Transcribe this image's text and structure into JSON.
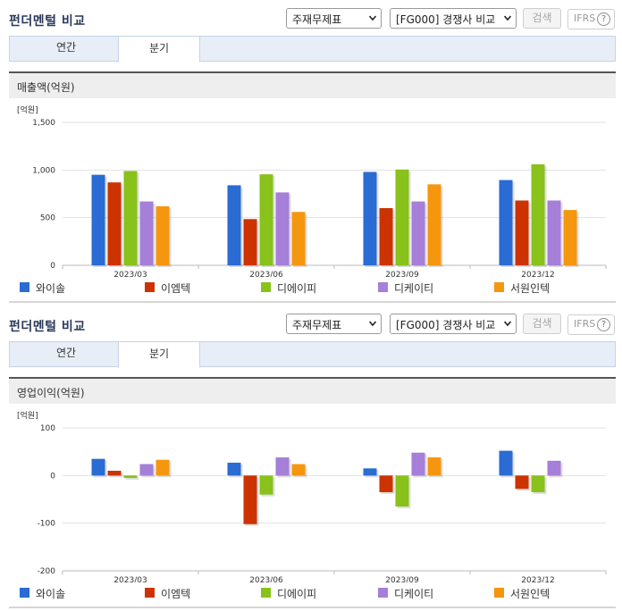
{
  "sections": [
    {
      "title": "펀더멘털 비교",
      "type_select": "주재무제표",
      "peer_select": "[FG000] 경쟁사 비교",
      "search_label": "검색",
      "ifrs_label": "IFRS",
      "help_label": "?",
      "tabs": [
        {
          "label": "연간"
        },
        {
          "label": "분기"
        }
      ],
      "chart_header": "매출액(억원)"
    },
    {
      "title": "펀더멘털 비교",
      "type_select": "주재무제표",
      "peer_select": "[FG000] 경쟁사 비교",
      "search_label": "검색",
      "ifrs_label": "IFRS",
      "help_label": "?",
      "tabs": [
        {
          "label": "연간"
        },
        {
          "label": "분기"
        }
      ],
      "chart_header": "영업이익(억원)"
    }
  ],
  "colors": {
    "와이솔": "#2a6bd4",
    "이엠텍": "#cc3300",
    "디에이피": "#88c21a",
    "디케이티": "#a57fd8",
    "서원인텍": "#f5960f"
  },
  "chart_data": [
    {
      "type": "bar",
      "unit_label": "[억원]",
      "categories": [
        "2023/03",
        "2023/06",
        "2023/09",
        "2023/12"
      ],
      "ylim": [
        0,
        1500
      ],
      "yticks": [
        0,
        500,
        1000,
        1500
      ],
      "ytick_labels": [
        "0",
        "500",
        "1,000",
        "1,500"
      ],
      "grid": true,
      "legend_position": "bottom",
      "series": [
        {
          "name": "와이솔",
          "values": [
            950,
            840,
            980,
            895
          ]
        },
        {
          "name": "이엠텍",
          "values": [
            870,
            485,
            600,
            680
          ]
        },
        {
          "name": "디에이피",
          "values": [
            990,
            955,
            1005,
            1060
          ]
        },
        {
          "name": "디케이티",
          "values": [
            670,
            765,
            670,
            680
          ]
        },
        {
          "name": "서원인텍",
          "values": [
            620,
            560,
            850,
            580
          ]
        }
      ]
    },
    {
      "type": "bar",
      "unit_label": "[억원]",
      "categories": [
        "2023/03",
        "2023/06",
        "2023/09",
        "2023/12"
      ],
      "ylim": [
        -200,
        100
      ],
      "yticks": [
        -200,
        -100,
        0,
        100
      ],
      "ytick_labels": [
        "-200",
        "-100",
        "0",
        "100"
      ],
      "grid": true,
      "legend_position": "bottom",
      "series": [
        {
          "name": "와이솔",
          "values": [
            35,
            27,
            15,
            52
          ]
        },
        {
          "name": "이엠텍",
          "values": [
            10,
            -102,
            -35,
            -28
          ]
        },
        {
          "name": "디에이피",
          "values": [
            -5,
            -40,
            -65,
            -35
          ]
        },
        {
          "name": "디케이티",
          "values": [
            24,
            38,
            48,
            31
          ]
        },
        {
          "name": "서원인텍",
          "values": [
            33,
            24,
            38,
            0
          ]
        }
      ]
    }
  ]
}
